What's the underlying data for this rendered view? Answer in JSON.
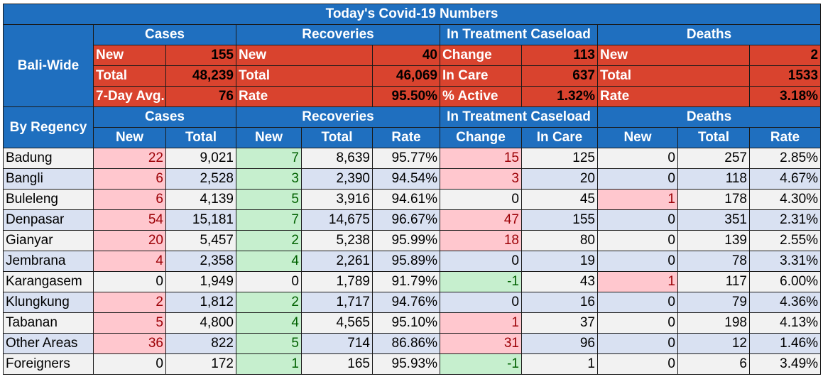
{
  "title": "Today's Covid-19 Numbers",
  "colors": {
    "header_blue": "#1f6fbf",
    "summary_red": "#d9432e",
    "increase_pink": "#ffc7ce",
    "decrease_green": "#c6efce",
    "row_grey": "#f2f2f2",
    "row_blue": "#d9e1f2"
  },
  "summary": {
    "side_label": "Bali-Wide",
    "groups": [
      "Cases",
      "Recoveries",
      "In Treatment Caseload",
      "Deaths"
    ],
    "rows": [
      [
        [
          "New",
          "155"
        ],
        [
          "New",
          "40"
        ],
        [
          "Change",
          "113"
        ],
        [
          "New",
          "2"
        ]
      ],
      [
        [
          "Total",
          "48,239"
        ],
        [
          "Total",
          "46,069"
        ],
        [
          "In Care",
          "637"
        ],
        [
          "Total",
          "1533"
        ]
      ],
      [
        [
          "7-Day Avg.",
          "76"
        ],
        [
          "Rate",
          "95.50%"
        ],
        [
          "% Active",
          "1.32%"
        ],
        [
          "Rate",
          "3.18%"
        ]
      ]
    ]
  },
  "regency": {
    "side_label": "By Regency",
    "groups": [
      "Cases",
      "Recoveries",
      "In Treatment Caseload",
      "Deaths"
    ],
    "columns": [
      "New",
      "Total",
      "New",
      "Total",
      "Rate",
      "Change",
      "In Care",
      "New",
      "Total",
      "Rate"
    ],
    "rows": [
      {
        "name": "Badung",
        "values": [
          "22",
          "9,021",
          "7",
          "8,639",
          "95.77%",
          "15",
          "125",
          "0",
          "257",
          "2.85%"
        ]
      },
      {
        "name": "Bangli",
        "values": [
          "6",
          "2,528",
          "3",
          "2,390",
          "94.54%",
          "3",
          "20",
          "0",
          "118",
          "4.67%"
        ]
      },
      {
        "name": "Buleleng",
        "values": [
          "6",
          "4,139",
          "5",
          "3,916",
          "94.61%",
          "0",
          "45",
          "1",
          "178",
          "4.30%"
        ]
      },
      {
        "name": "Denpasar",
        "values": [
          "54",
          "15,181",
          "7",
          "14,675",
          "96.67%",
          "47",
          "155",
          "0",
          "351",
          "2.31%"
        ]
      },
      {
        "name": "Gianyar",
        "values": [
          "20",
          "5,457",
          "2",
          "5,238",
          "95.99%",
          "18",
          "80",
          "0",
          "139",
          "2.55%"
        ]
      },
      {
        "name": "Jembrana",
        "values": [
          "4",
          "2,358",
          "4",
          "2,261",
          "95.89%",
          "0",
          "19",
          "0",
          "78",
          "3.31%"
        ]
      },
      {
        "name": "Karangasem",
        "values": [
          "0",
          "1,949",
          "0",
          "1,789",
          "91.79%",
          "-1",
          "43",
          "1",
          "117",
          "6.00%"
        ]
      },
      {
        "name": "Klungkung",
        "values": [
          "2",
          "1,812",
          "2",
          "1,717",
          "94.76%",
          "0",
          "16",
          "0",
          "79",
          "4.36%"
        ]
      },
      {
        "name": "Tabanan",
        "values": [
          "5",
          "4,800",
          "4",
          "4,565",
          "95.10%",
          "1",
          "37",
          "0",
          "198",
          "4.13%"
        ]
      },
      {
        "name": "Other Areas",
        "values": [
          "36",
          "822",
          "5",
          "714",
          "86.86%",
          "31",
          "96",
          "0",
          "12",
          "1.46%"
        ]
      },
      {
        "name": "Foreigners",
        "values": [
          "0",
          "172",
          "1",
          "165",
          "95.93%",
          "-1",
          "1",
          "0",
          "6",
          "3.49%"
        ]
      }
    ]
  }
}
